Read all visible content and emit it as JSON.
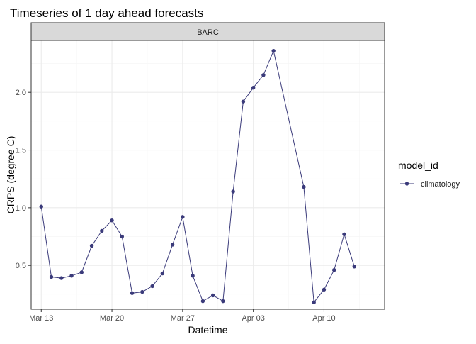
{
  "chart_data": {
    "type": "line",
    "title": "Timeseries of 1 day ahead forecasts",
    "facet_label": "BARC",
    "xlabel": "Datetime",
    "ylabel": "CRPS (degree C)",
    "x_tick_labels": [
      {
        "date": "2023-03-13",
        "label": "Mar 13"
      },
      {
        "date": "2023-03-20",
        "label": "Mar 20"
      },
      {
        "date": "2023-03-27",
        "label": "Mar 27"
      },
      {
        "date": "2023-04-03",
        "label": "Apr 03"
      },
      {
        "date": "2023-04-10",
        "label": "Apr 10"
      }
    ],
    "y_ticks": [
      0.5,
      1.0,
      1.5,
      2.0
    ],
    "y_tick_labels": [
      "0.5",
      "1.0",
      "1.5",
      "2.0"
    ],
    "xlim": [
      "2023-03-12",
      "2023-04-16"
    ],
    "ylim": [
      0.12,
      2.45
    ],
    "grid": true,
    "legend": {
      "title": "model_id",
      "placement": "right"
    },
    "series": [
      {
        "name": "climatology",
        "color": "#3a3a7a",
        "points": [
          {
            "x": "2023-03-13",
            "y": 1.01
          },
          {
            "x": "2023-03-14",
            "y": 0.4
          },
          {
            "x": "2023-03-15",
            "y": 0.39
          },
          {
            "x": "2023-03-16",
            "y": 0.41
          },
          {
            "x": "2023-03-17",
            "y": 0.44
          },
          {
            "x": "2023-03-18",
            "y": 0.67
          },
          {
            "x": "2023-03-19",
            "y": 0.8
          },
          {
            "x": "2023-03-20",
            "y": 0.89
          },
          {
            "x": "2023-03-21",
            "y": 0.75
          },
          {
            "x": "2023-03-22",
            "y": 0.26
          },
          {
            "x": "2023-03-23",
            "y": 0.27
          },
          {
            "x": "2023-03-24",
            "y": 0.32
          },
          {
            "x": "2023-03-25",
            "y": 0.43
          },
          {
            "x": "2023-03-26",
            "y": 0.68
          },
          {
            "x": "2023-03-27",
            "y": 0.92
          },
          {
            "x": "2023-03-28",
            "y": 0.41
          },
          {
            "x": "2023-03-29",
            "y": 0.19
          },
          {
            "x": "2023-03-30",
            "y": 0.24
          },
          {
            "x": "2023-03-31",
            "y": 0.19
          },
          {
            "x": "2023-04-01",
            "y": 1.14
          },
          {
            "x": "2023-04-02",
            "y": 1.92
          },
          {
            "x": "2023-04-03",
            "y": 2.04
          },
          {
            "x": "2023-04-04",
            "y": 2.15
          },
          {
            "x": "2023-04-05",
            "y": 2.36
          },
          {
            "x": "2023-04-08",
            "y": 1.18
          },
          {
            "x": "2023-04-09",
            "y": 0.18
          },
          {
            "x": "2023-04-10",
            "y": 0.29
          },
          {
            "x": "2023-04-11",
            "y": 0.46
          },
          {
            "x": "2023-04-12",
            "y": 0.77
          },
          {
            "x": "2023-04-13",
            "y": 0.49
          }
        ]
      }
    ]
  }
}
